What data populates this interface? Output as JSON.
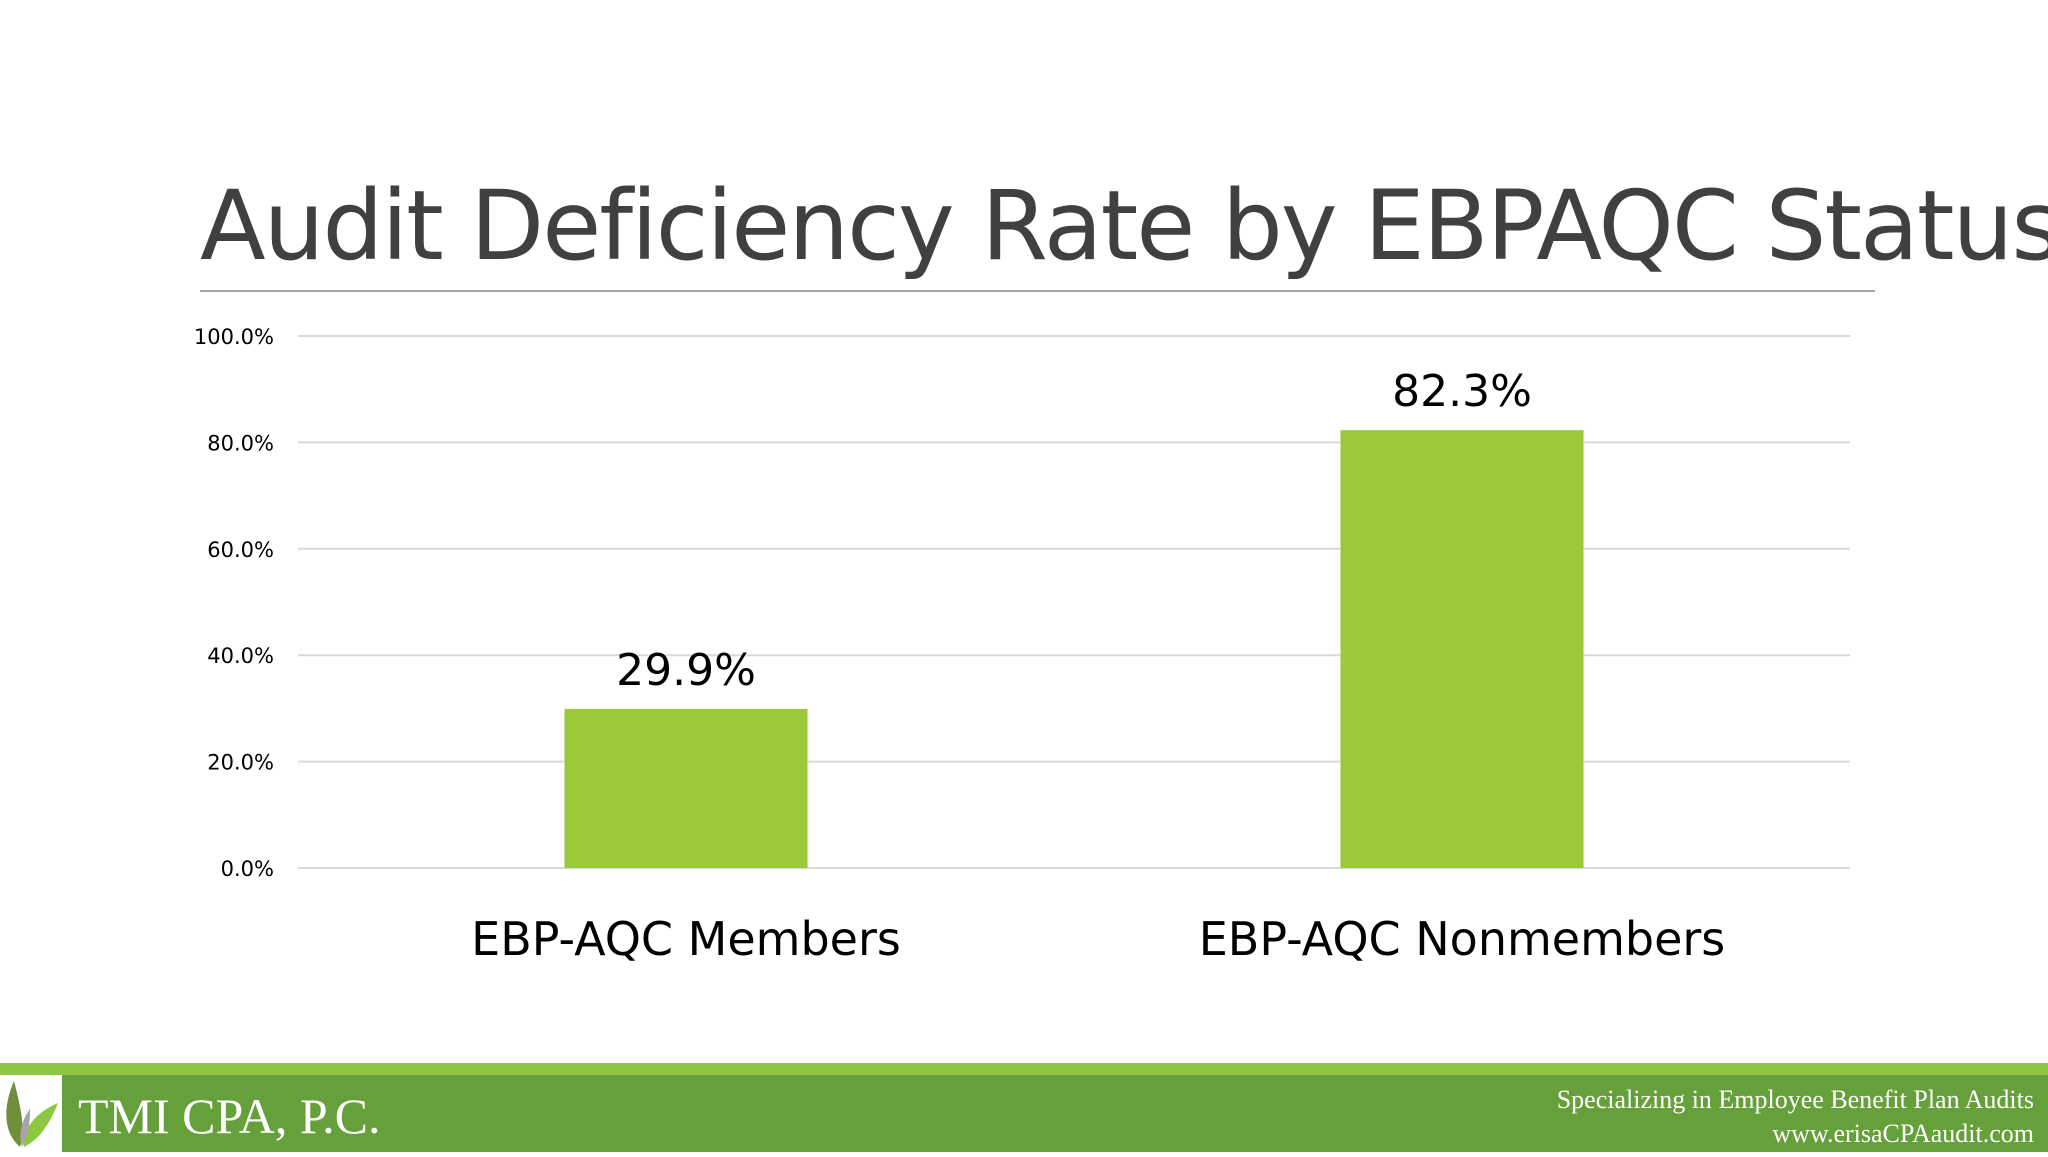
{
  "title": "Audit Deficiency Rate by EBPAQC Status",
  "colors": {
    "bar": "#9bc93a",
    "gridline": "#d9d9d9",
    "axis_text": "#000000",
    "footer_green": "#66a03a",
    "footer_accent": "#8dc63f"
  },
  "chart_data": {
    "type": "bar",
    "title": "Audit Deficiency Rate by EBPAQC Status",
    "xlabel": "",
    "ylabel": "",
    "categories": [
      "EBP-AQC Members",
      "EBP-AQC Nonmembers"
    ],
    "values": [
      29.9,
      82.3
    ],
    "data_labels": [
      "29.9%",
      "82.3%"
    ],
    "ylim": [
      0,
      100
    ],
    "yticks": [
      0,
      20,
      40,
      60,
      80,
      100
    ],
    "ytick_labels": [
      "0.0%",
      "20.0%",
      "40.0%",
      "60.0%",
      "80.0%",
      "100.0%"
    ],
    "grid": true,
    "legend": "none"
  },
  "footer": {
    "company": "TMI CPA, P.C.",
    "tagline_line1": "Specializing in Employee Benefit Plan Audits",
    "tagline_line2": "www.erisaCPAaudit.com",
    "logo_icon": "leaf-icon"
  }
}
